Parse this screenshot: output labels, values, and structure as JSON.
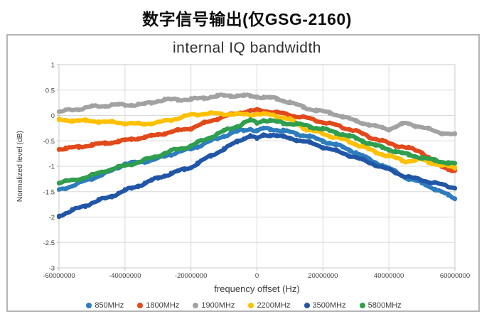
{
  "page_title": "数字信号输出(仅GSG-2160)",
  "chart_data": {
    "type": "scatter",
    "title": "internal IQ bandwidth",
    "xlabel": "frequency offset (Hz)",
    "ylabel": "Normalized level (dB)",
    "xlim": [
      -60000000,
      60000000
    ],
    "ylim": [
      -3,
      1
    ],
    "x_ticks": [
      -60000000,
      -40000000,
      -20000000,
      0,
      20000000,
      40000000,
      60000000
    ],
    "y_ticks": [
      1,
      0.5,
      0,
      -0.5,
      -1,
      -1.5,
      -2,
      -2.5,
      -3
    ],
    "grid": true,
    "legend_position": "bottom",
    "gridline_color": "#d9d9d9",
    "x": [
      -60000000,
      -55000000,
      -50000000,
      -45000000,
      -40000000,
      -35000000,
      -30000000,
      -25000000,
      -20000000,
      -15000000,
      -10000000,
      -5000000,
      -2000000,
      0,
      2000000,
      5000000,
      10000000,
      15000000,
      20000000,
      25000000,
      30000000,
      35000000,
      40000000,
      45000000,
      50000000,
      55000000,
      60000000
    ],
    "series": [
      {
        "name": "850MHz",
        "color": "#2d7dbe",
        "values": [
          -1.47,
          -1.36,
          -1.24,
          -1.12,
          -0.95,
          -0.92,
          -0.85,
          -0.74,
          -0.66,
          -0.53,
          -0.4,
          -0.3,
          -0.26,
          -0.31,
          -0.26,
          -0.27,
          -0.33,
          -0.4,
          -0.5,
          -0.6,
          -0.73,
          -0.9,
          -1.04,
          -1.22,
          -1.33,
          -1.48,
          -1.63
        ]
      },
      {
        "name": "1800MHz",
        "color": "#e2491b",
        "values": [
          -0.66,
          -0.63,
          -0.58,
          -0.54,
          -0.49,
          -0.44,
          -0.38,
          -0.31,
          -0.25,
          -0.13,
          -0.02,
          0.06,
          0.09,
          0.1,
          0.09,
          0.07,
          0.01,
          -0.05,
          -0.13,
          -0.21,
          -0.31,
          -0.44,
          -0.55,
          -0.63,
          -0.72,
          -0.98,
          -1.09
        ]
      },
      {
        "name": "1900MHz",
        "color": "#a2a2a2",
        "values": [
          0.07,
          0.12,
          0.17,
          0.2,
          0.21,
          0.21,
          0.29,
          0.32,
          0.31,
          0.36,
          0.39,
          0.39,
          0.38,
          0.37,
          0.36,
          0.34,
          0.26,
          0.14,
          0.08,
          0.0,
          -0.11,
          -0.2,
          -0.27,
          -0.15,
          -0.23,
          -0.33,
          -0.38
        ]
      },
      {
        "name": "2200MHz",
        "color": "#ffc000",
        "values": [
          -0.09,
          -0.1,
          -0.11,
          -0.13,
          -0.15,
          -0.17,
          -0.14,
          -0.07,
          0.01,
          0.04,
          0.03,
          0.02,
          0.02,
          0.03,
          0.02,
          0.01,
          -0.08,
          -0.27,
          -0.36,
          -0.45,
          -0.56,
          -0.7,
          -0.8,
          -0.9,
          -0.87,
          -0.97,
          -1.02
        ]
      },
      {
        "name": "3500MHz",
        "color": "#2156a6",
        "values": [
          -1.97,
          -1.85,
          -1.72,
          -1.61,
          -1.48,
          -1.36,
          -1.23,
          -1.12,
          -1.02,
          -0.83,
          -0.66,
          -0.48,
          -0.4,
          -0.46,
          -0.39,
          -0.38,
          -0.45,
          -0.52,
          -0.62,
          -0.72,
          -0.83,
          -0.95,
          -1.07,
          -1.2,
          -1.27,
          -1.35,
          -1.42
        ]
      },
      {
        "name": "5800MHz",
        "color": "#2f9e4d",
        "values": [
          -1.32,
          -1.27,
          -1.18,
          -1.07,
          -0.99,
          -0.9,
          -0.79,
          -0.68,
          -0.6,
          -0.45,
          -0.31,
          -0.18,
          -0.1,
          -0.14,
          -0.09,
          -0.12,
          -0.16,
          -0.2,
          -0.27,
          -0.35,
          -0.45,
          -0.57,
          -0.67,
          -0.76,
          -0.83,
          -0.9,
          -0.95
        ]
      }
    ]
  }
}
